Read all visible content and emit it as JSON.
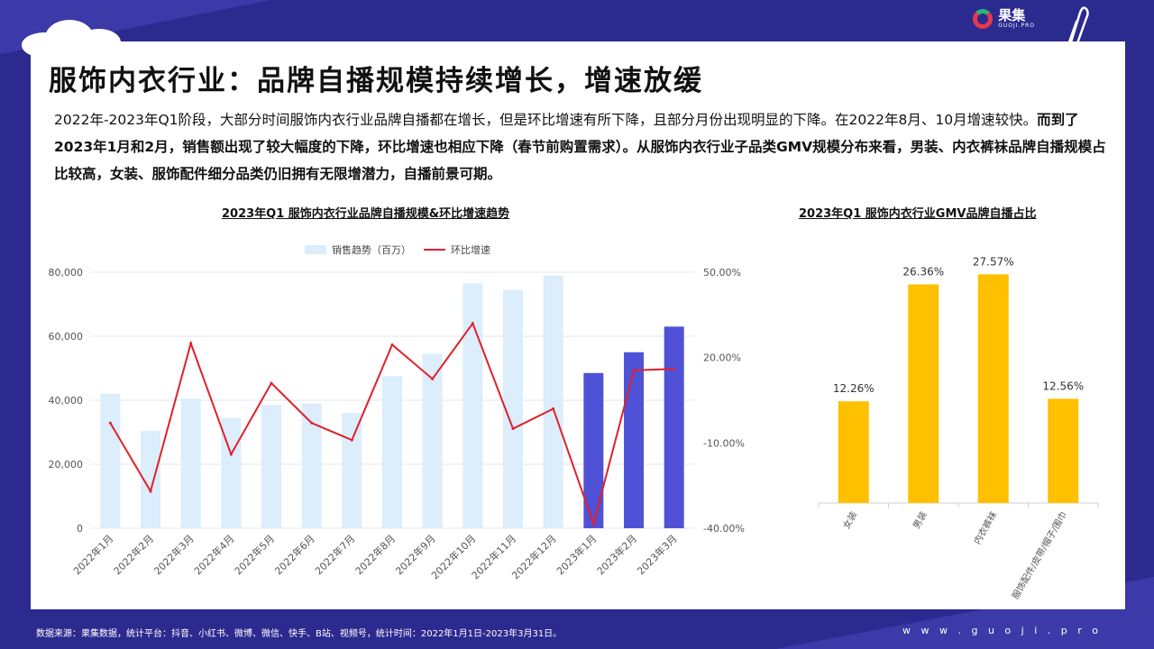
{
  "brand": {
    "name": "果集",
    "sub": "GUOJI.PRO"
  },
  "title": "服饰内衣行业：品牌自播规模持续增长，增速放缓",
  "description": {
    "part1": "2022年-2023年Q1阶段，大部分时间服饰内衣行业品牌自播都在增长，但是环比增速有所下降，且部分月份出现明显的下降。在2022年8月、10月增速较快。",
    "part2": "而到了2023年1月和2月，销售额出现了较大幅度的下降，环比增速也相应下降（春节前购置需求）。从服饰内衣行业子品类GMV规模分布来看，男装、内衣裤袜品牌自播规模占比较高，女装、服饰配件细分品类仍旧拥有无限增潜力，自播前景可期。"
  },
  "chart_data": [
    {
      "type": "bar+line",
      "title": "2023年Q1 服饰内衣行业品牌自播规模&环比增速趋势",
      "categories": [
        "2022年1月",
        "2022年2月",
        "2022年3月",
        "2022年4月",
        "2022年5月",
        "2022年6月",
        "2022年7月",
        "2022年8月",
        "2022年9月",
        "2022年10月",
        "2022年11月",
        "2022年12月",
        "2023年1月",
        "2023年2月",
        "2023年3月"
      ],
      "series": [
        {
          "name": "销售趋势（百万）",
          "kind": "bar",
          "axis": "left",
          "values": [
            42000,
            30500,
            40500,
            34500,
            38500,
            39000,
            36000,
            47500,
            54500,
            76500,
            74500,
            79000,
            48500,
            55000,
            63000
          ]
        },
        {
          "name": "环比增速",
          "kind": "line",
          "axis": "right",
          "values": [
            -3.0,
            -27.0,
            25.0,
            -14.0,
            11.0,
            -3.0,
            -9.0,
            24.5,
            12.5,
            32.0,
            -5.0,
            2.0,
            -38.5,
            15.5,
            16.0
          ]
        }
      ],
      "highlight_from_index": 12,
      "yleft": {
        "min": 0,
        "max": 80000,
        "ticks": [
          0,
          20000,
          40000,
          60000,
          80000
        ],
        "tick_labels": [
          "0",
          "20,000",
          "40,000",
          "60,000",
          "80,000"
        ]
      },
      "yright": {
        "min": -40,
        "max": 50,
        "ticks": [
          -40,
          -10,
          20,
          50
        ],
        "tick_labels": [
          "-40.00%",
          "-10.00%",
          "20.00%",
          "50.00%"
        ]
      },
      "legend_position": "top-center",
      "grid": true,
      "colors": {
        "bar": "#dcedfb",
        "bar_highlight": "#4f52d6",
        "line": "#e0202a",
        "grid": "#e6e6e6"
      }
    },
    {
      "type": "bar",
      "title": "2023年Q1 服饰内衣行业GMV品牌自播占比",
      "categories": [
        "女装",
        "男装",
        "内衣裤袜",
        "服饰配件/皮带/帽子/围巾"
      ],
      "values": [
        12.26,
        26.36,
        27.57,
        12.56
      ],
      "value_labels": [
        "12.26%",
        "26.36%",
        "27.57%",
        "12.56%"
      ],
      "ylim": [
        0,
        30
      ],
      "grid": false,
      "colors": {
        "bar": "#ffc000"
      }
    }
  ],
  "footer": {
    "source": "数据来源：果集数据，统计平台：抖音、小红书、微博、微信、快手、B站、视频号，统计时间：2022年1月1日-2023年3月31日。",
    "url": "w w w . g u o j i . p r o"
  }
}
